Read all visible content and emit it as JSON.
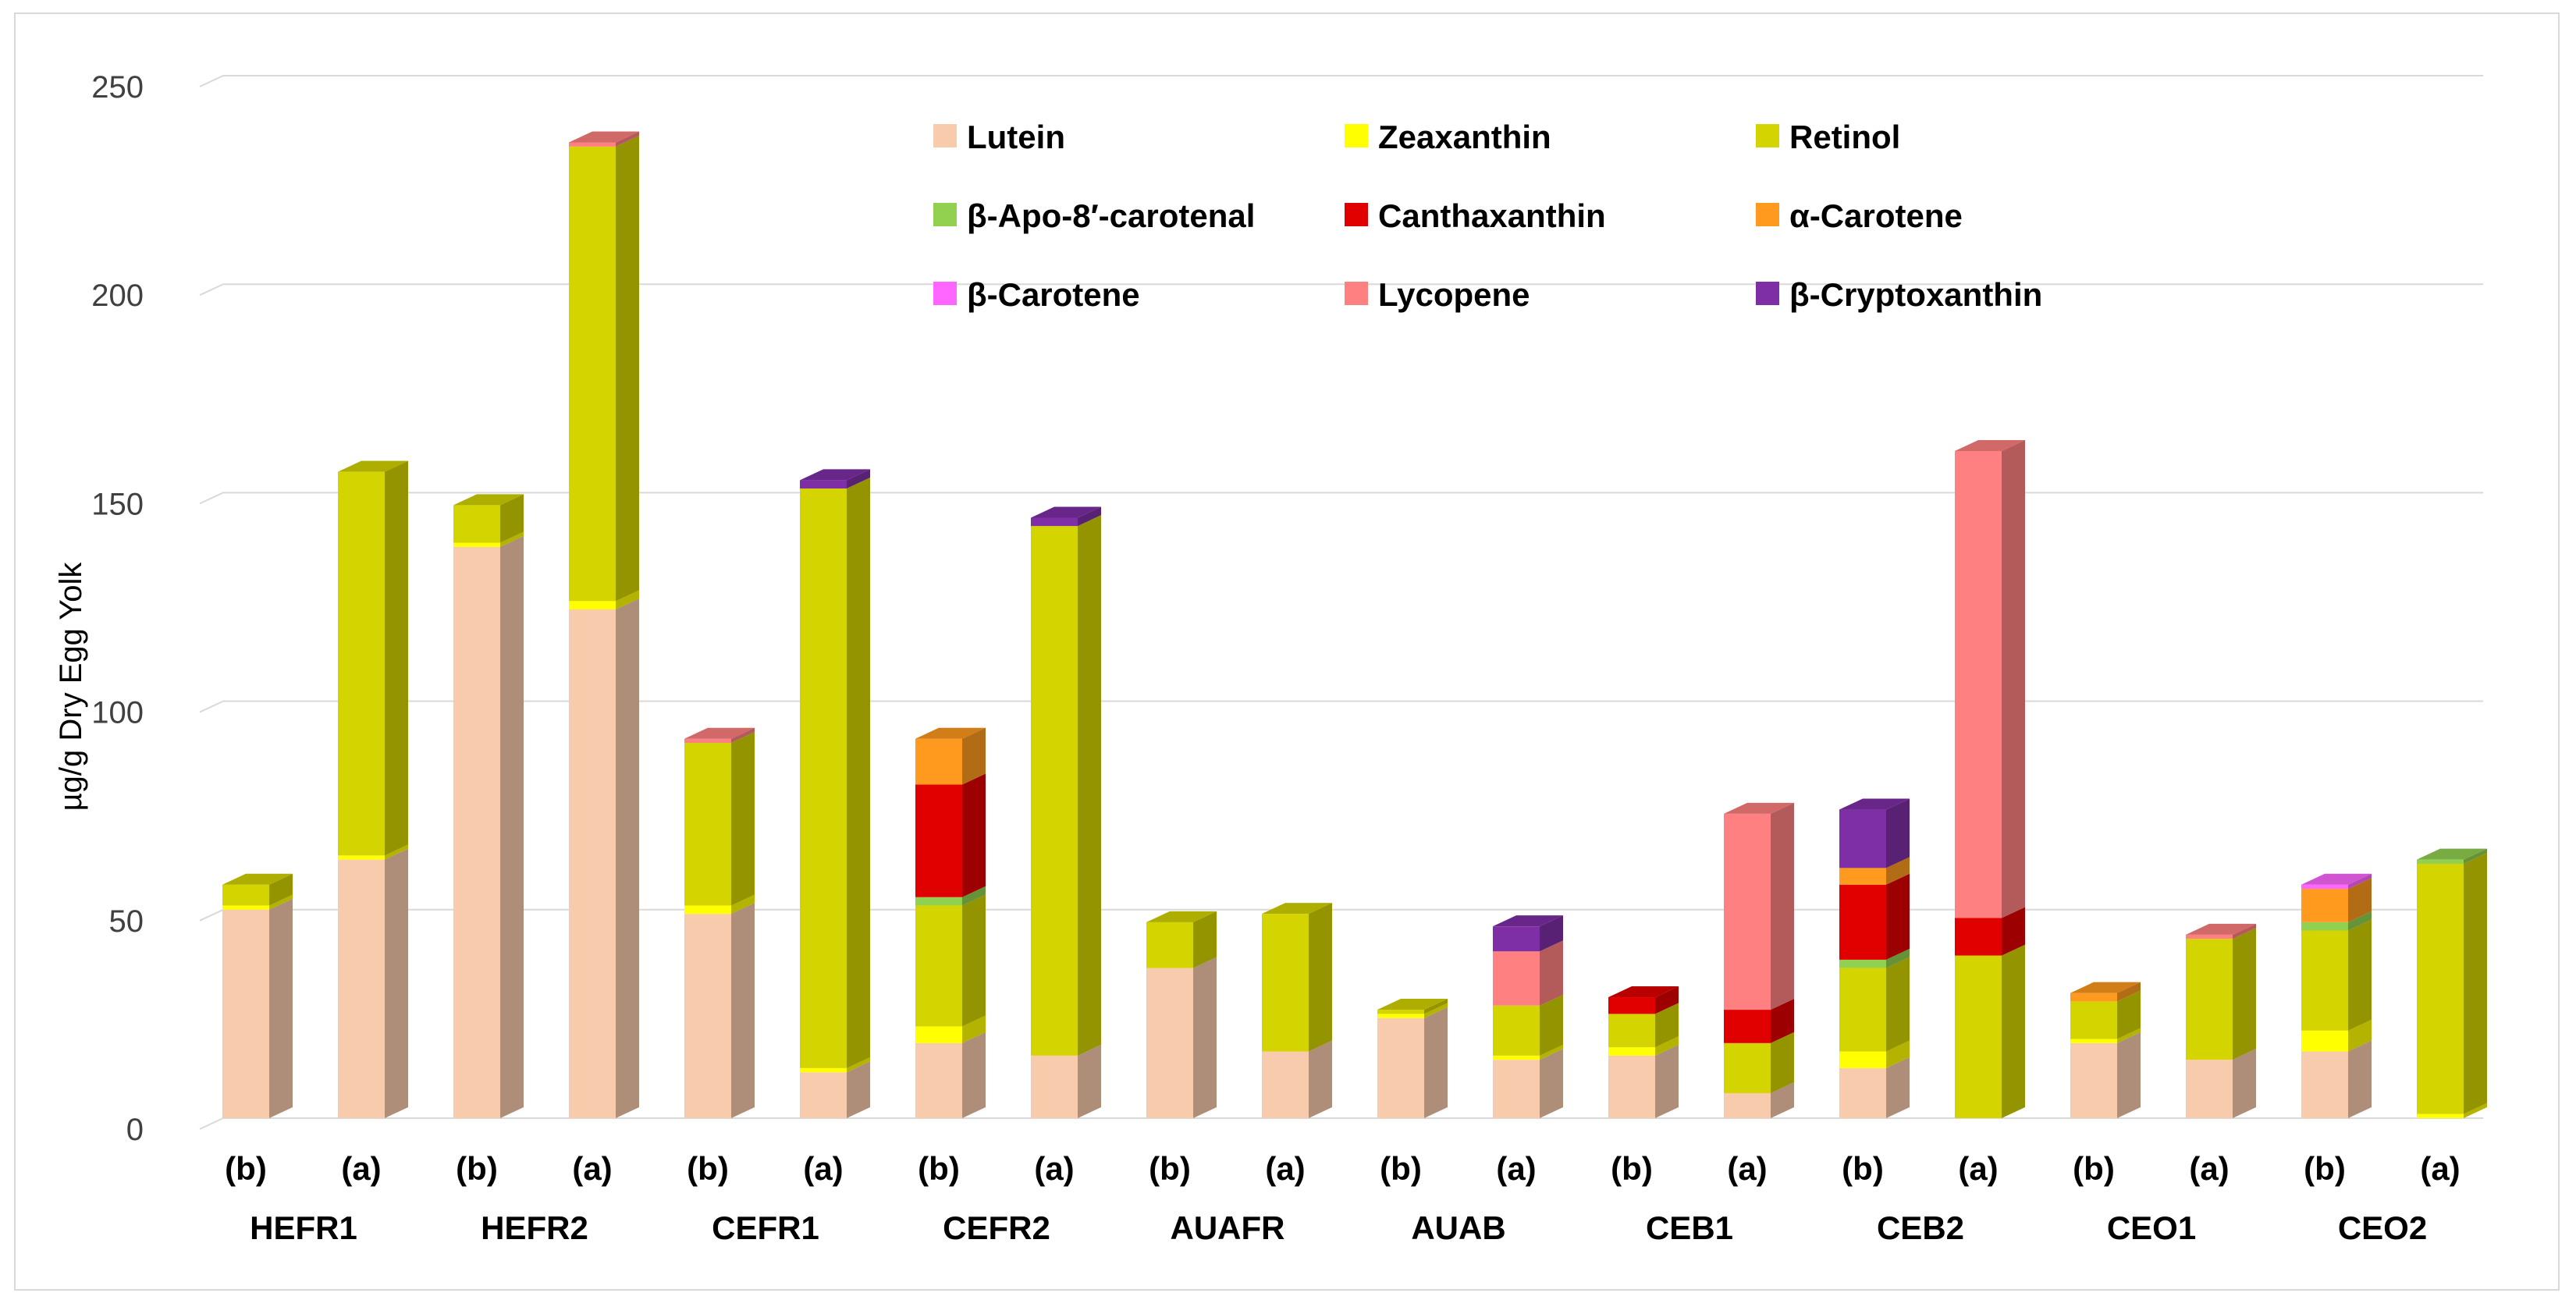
{
  "chart_data": {
    "type": "bar",
    "stacked": true,
    "three_d": true,
    "title": "",
    "xlabel": "",
    "ylabel": "µg/g Dry Egg Yolk",
    "ylim": [
      0,
      250
    ],
    "yticks": [
      0,
      50,
      100,
      150,
      200,
      250
    ],
    "grid": true,
    "legend_position": "top-right",
    "groups": [
      "HEFR1",
      "HEFR2",
      "CEFR1",
      "CEFR2",
      "AUAFR",
      "AUAB",
      "CEB1",
      "CEB2",
      "CEO1",
      "CEO2"
    ],
    "subcategories": [
      "(b)",
      "(a)"
    ],
    "series": [
      {
        "name": "Lutein",
        "color": "#F8CBAD",
        "values": [
          50,
          62,
          137,
          122,
          49,
          11,
          18,
          15,
          36,
          16,
          24,
          14,
          15,
          6,
          12,
          0,
          18,
          14,
          16,
          0
        ]
      },
      {
        "name": "Zeaxanthin",
        "color": "#FFFF00",
        "values": [
          1,
          1,
          1,
          2,
          2,
          1,
          4,
          0,
          0,
          0,
          1,
          1,
          2,
          0,
          4,
          0,
          1,
          0,
          5,
          1
        ]
      },
      {
        "name": "Retinol",
        "color": "#D4D400",
        "values": [
          5,
          92,
          9,
          109,
          39,
          139,
          29,
          127,
          11,
          33,
          1,
          12,
          8,
          12,
          20,
          39,
          9,
          29,
          24,
          60
        ]
      },
      {
        "name": "β-Apo-8′-carotenal",
        "color": "#92D050",
        "values": [
          0,
          0,
          0,
          0,
          0,
          0,
          2,
          0,
          0,
          0,
          0,
          0,
          0,
          0,
          2,
          0,
          0,
          0,
          2,
          1
        ]
      },
      {
        "name": "Canthaxanthin",
        "color": "#E00000",
        "values": [
          0,
          0,
          0,
          0,
          0,
          0,
          27,
          0,
          0,
          0,
          0,
          0,
          4,
          8,
          18,
          9,
          0,
          0,
          0,
          0
        ]
      },
      {
        "name": "α-Carotene",
        "color": "#FF9A1F",
        "values": [
          0,
          0,
          0,
          0,
          0,
          0,
          11,
          0,
          0,
          0,
          0,
          0,
          0,
          0,
          4,
          0,
          2,
          0,
          8,
          0
        ]
      },
      {
        "name": "β-Carotene",
        "color": "#FF66FF",
        "values": [
          0,
          0,
          0,
          0,
          0,
          0,
          0,
          0,
          0,
          0,
          0,
          0,
          0,
          0,
          0,
          0,
          0,
          0,
          1,
          0
        ]
      },
      {
        "name": "Lycopene",
        "color": "#FF8080",
        "values": [
          0,
          0,
          0,
          1,
          1,
          0,
          0,
          0,
          0,
          0,
          0,
          13,
          0,
          47,
          0,
          112,
          0,
          1,
          0,
          0
        ]
      },
      {
        "name": "β-Cryptoxanthin",
        "color": "#7F2FA6",
        "values": [
          0,
          0,
          0,
          0,
          0,
          2,
          0,
          2,
          0,
          0,
          0,
          6,
          0,
          0,
          14,
          0,
          0,
          0,
          0,
          0
        ]
      }
    ]
  }
}
